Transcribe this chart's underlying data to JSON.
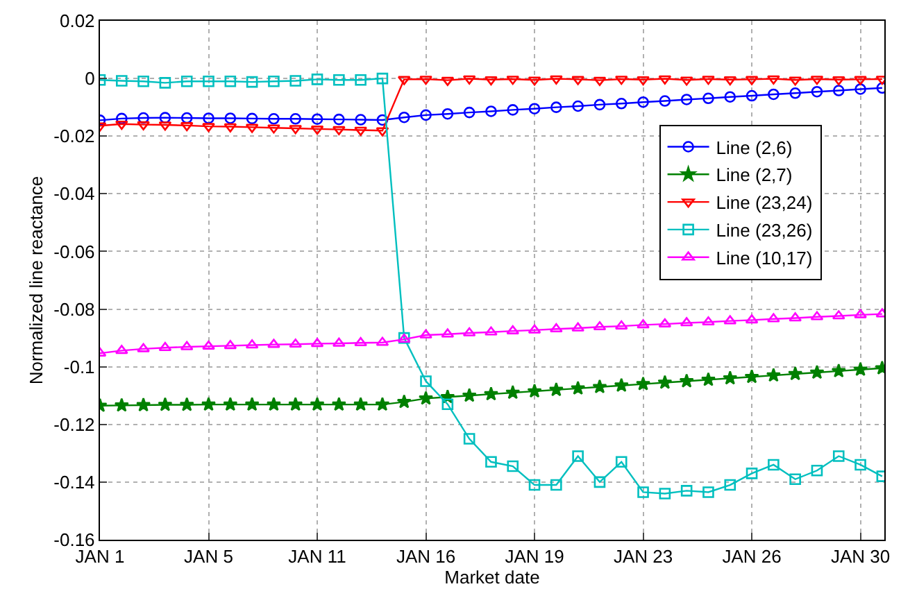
{
  "chart_data": {
    "type": "line",
    "xlabel": "Market date",
    "ylabel": "Normalized line reactance",
    "categories": [
      "JAN 1",
      null,
      null,
      null,
      null,
      "JAN 5",
      null,
      null,
      null,
      null,
      "JAN 11",
      null,
      null,
      null,
      null,
      "JAN 16",
      null,
      null,
      null,
      null,
      "JAN 19",
      null,
      null,
      null,
      null,
      "JAN 23",
      null,
      null,
      null,
      null,
      "JAN 26",
      null,
      null,
      null,
      null,
      "JAN 30",
      null
    ],
    "ylim": [
      -0.16,
      0.02
    ],
    "yticks": [
      0.02,
      0,
      -0.02,
      -0.04,
      -0.06,
      -0.08,
      -0.1,
      -0.12,
      -0.14,
      -0.16
    ],
    "grid": true,
    "legend": "right",
    "line_style": "solid",
    "series": [
      {
        "name": "Line (2,6)",
        "color": "#0000ff",
        "marker": "circle",
        "values": [
          -0.0145,
          -0.0139,
          -0.0137,
          -0.0136,
          -0.0137,
          -0.0138,
          -0.0138,
          -0.0139,
          -0.014,
          -0.014,
          -0.0141,
          -0.0142,
          -0.0143,
          -0.0144,
          -0.0135,
          -0.0127,
          -0.0123,
          -0.0118,
          -0.0114,
          -0.0109,
          -0.0105,
          -0.01,
          -0.0096,
          -0.0091,
          -0.0087,
          -0.0082,
          -0.0078,
          -0.0073,
          -0.0069,
          -0.0064,
          -0.006,
          -0.0055,
          -0.0051,
          -0.0046,
          -0.0042,
          -0.0037,
          -0.0033
        ]
      },
      {
        "name": "Line (2,7)",
        "color": "#008000",
        "marker": "star",
        "values": [
          -0.1135,
          -0.1134,
          -0.1133,
          -0.1132,
          -0.1132,
          -0.1131,
          -0.1131,
          -0.1131,
          -0.1131,
          -0.1131,
          -0.1131,
          -0.1131,
          -0.1131,
          -0.1131,
          -0.1122,
          -0.111,
          -0.1105,
          -0.11,
          -0.1095,
          -0.109,
          -0.1085,
          -0.108,
          -0.1075,
          -0.107,
          -0.1065,
          -0.106,
          -0.1055,
          -0.105,
          -0.1045,
          -0.104,
          -0.1035,
          -0.103,
          -0.1025,
          -0.102,
          -0.1015,
          -0.101,
          -0.1005
        ]
      },
      {
        "name": "Line (23,24)",
        "color": "#ff0000",
        "marker": "triangle-down",
        "values": [
          -0.0164,
          -0.0158,
          -0.016,
          -0.0161,
          -0.0163,
          -0.0166,
          -0.0167,
          -0.0169,
          -0.0171,
          -0.0173,
          -0.0175,
          -0.0177,
          -0.0179,
          -0.0181,
          -0.0003,
          -0.0002,
          -0.0006,
          -0.0001,
          -0.0004,
          -0.0002,
          -0.0005,
          -0.0001,
          -0.0003,
          -0.0006,
          -0.0002,
          -0.0004,
          -0.0001,
          -0.0005,
          -0.0002,
          -0.0004,
          -0.0003,
          -0.0001,
          -0.0005,
          -0.0002,
          -0.0004,
          -0.0003,
          -0.0002
        ]
      },
      {
        "name": "Line (23,26)",
        "color": "#00bfbf",
        "marker": "square",
        "values": [
          -0.0005,
          -0.0008,
          -0.001,
          -0.0015,
          -0.001,
          -0.001,
          -0.001,
          -0.0012,
          -0.001,
          -0.0008,
          -0.0003,
          -0.0005,
          -0.0005,
          0,
          -0.09,
          -0.105,
          -0.113,
          -0.125,
          -0.133,
          -0.1345,
          -0.141,
          -0.141,
          -0.131,
          -0.14,
          -0.133,
          -0.1435,
          -0.144,
          -0.143,
          -0.1435,
          -0.141,
          -0.137,
          -0.134,
          -0.139,
          -0.136,
          -0.131,
          -0.134,
          -0.138
        ]
      },
      {
        "name": "Line (10,17)",
        "color": "#ff00ff",
        "marker": "triangle",
        "values": [
          -0.0953,
          -0.0944,
          -0.0938,
          -0.0934,
          -0.0931,
          -0.0929,
          -0.0927,
          -0.0925,
          -0.0923,
          -0.0922,
          -0.092,
          -0.0919,
          -0.0917,
          -0.0916,
          -0.0905,
          -0.089,
          -0.0887,
          -0.0883,
          -0.088,
          -0.0876,
          -0.0873,
          -0.0869,
          -0.0866,
          -0.0862,
          -0.0859,
          -0.0855,
          -0.0852,
          -0.0848,
          -0.0845,
          -0.0841,
          -0.0838,
          -0.0834,
          -0.0831,
          -0.0827,
          -0.0824,
          -0.082,
          -0.0817
        ]
      }
    ]
  }
}
